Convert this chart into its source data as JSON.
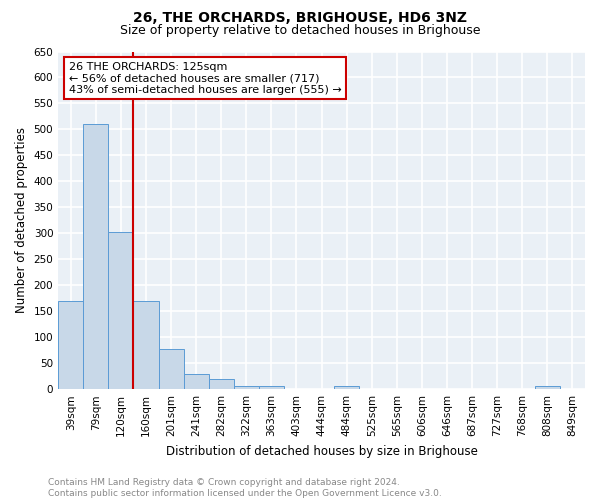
{
  "title": "26, THE ORCHARDS, BRIGHOUSE, HD6 3NZ",
  "subtitle": "Size of property relative to detached houses in Brighouse",
  "xlabel": "Distribution of detached houses by size in Brighouse",
  "ylabel": "Number of detached properties",
  "bar_labels": [
    "39sqm",
    "79sqm",
    "120sqm",
    "160sqm",
    "201sqm",
    "241sqm",
    "282sqm",
    "322sqm",
    "363sqm",
    "403sqm",
    "444sqm",
    "484sqm",
    "525sqm",
    "565sqm",
    "606sqm",
    "646sqm",
    "687sqm",
    "727sqm",
    "768sqm",
    "808sqm",
    "849sqm"
  ],
  "bar_values": [
    170,
    510,
    303,
    170,
    78,
    30,
    20,
    7,
    7,
    0,
    0,
    7,
    0,
    0,
    0,
    0,
    0,
    0,
    0,
    7,
    0
  ],
  "bar_color": "#c8d8e8",
  "bar_edgecolor": "#5b9bd5",
  "vline_x": 2.5,
  "vline_color": "#cc0000",
  "annotation_line1": "26 THE ORCHARDS: 125sqm",
  "annotation_line2": "← 56% of detached houses are smaller (717)",
  "annotation_line3": "43% of semi-detached houses are larger (555) →",
  "ylim": [
    0,
    650
  ],
  "yticks": [
    0,
    50,
    100,
    150,
    200,
    250,
    300,
    350,
    400,
    450,
    500,
    550,
    600,
    650
  ],
  "footer_line1": "Contains HM Land Registry data © Crown copyright and database right 2024.",
  "footer_line2": "Contains public sector information licensed under the Open Government Licence v3.0.",
  "bg_color": "#eaf0f6",
  "grid_color": "#ffffff",
  "title_fontsize": 10,
  "subtitle_fontsize": 9,
  "xlabel_fontsize": 8.5,
  "ylabel_fontsize": 8.5,
  "tick_fontsize": 7.5,
  "footer_fontsize": 6.5,
  "annot_fontsize": 8
}
